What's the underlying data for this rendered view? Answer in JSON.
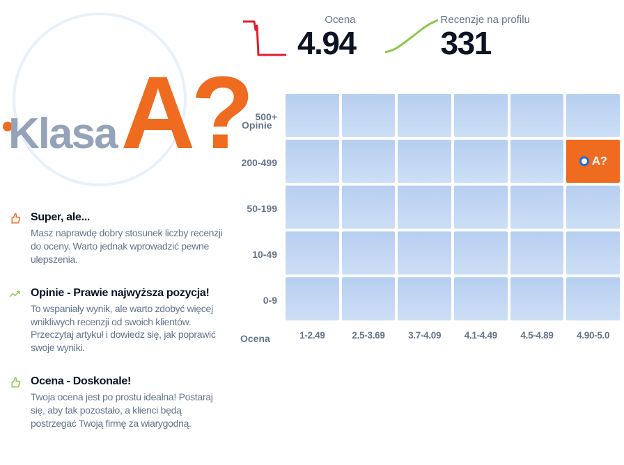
{
  "header": {
    "klasa_label": "Klasa",
    "klasa_grade": "A?",
    "opinie_label": "Opinie"
  },
  "stats": {
    "ocena": {
      "label": "Ocena",
      "value": "4.94",
      "spark_color": "#e11d2e"
    },
    "recenzje": {
      "label": "Recenzje na profilu",
      "value": "331",
      "spark_color": "#8fc549"
    }
  },
  "tips": [
    {
      "icon": "thumb-orange",
      "title": "Super, ale...",
      "text": "Masz naprawdę dobry stosunek liczby recenzji do oceny. Warto jednak wprowadzić pewne ulepszenia."
    },
    {
      "icon": "trend-green",
      "title": "Opinie - Prawie najwyższa pozycja!",
      "text": "To wspaniały wynik, ale warto zdobyć więcej wnikliwych recenzji od swoich klientów. Przeczytaj artykuł i dowiedz się, jak poprawić swoje wyniki."
    },
    {
      "icon": "thumb-green",
      "title": "Ocena - Doskonale!",
      "text": "Twoja ocena jest po prostu idealna! Postaraj się, aby tak pozostało, a klienci będą postrzegać Twoją firmę za wiarygodną."
    }
  ],
  "grid": {
    "y_title": "",
    "y_labels": [
      "500+",
      "200-499",
      "50-199",
      "10-49",
      "0-9"
    ],
    "x_title": "Ocena",
    "x_labels": [
      "1-2.49",
      "2.5-3.69",
      "3.7-4.09",
      "4.1-4.49",
      "4.5-4.89",
      "4.90-5.0"
    ],
    "active": {
      "row": 1,
      "col": 5,
      "label": "A?"
    },
    "cell_bg_top": "#b6cef0",
    "cell_bg_bottom": "#cddff6",
    "active_bg": "#ee6b1f",
    "active_dot_border": "#1e6be0"
  },
  "colors": {
    "orange": "#ee6b1f",
    "green": "#8fc549",
    "muted": "#64748b",
    "heading_muted": "#94a3b8",
    "dark": "#0b1324",
    "circle": "#e8f0fb"
  }
}
